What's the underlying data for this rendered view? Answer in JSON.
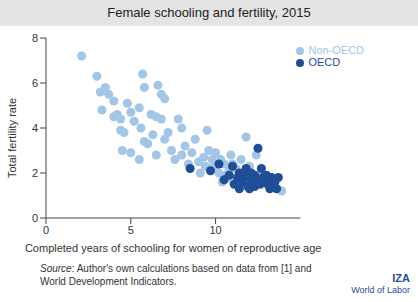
{
  "chart_data": {
    "type": "scatter",
    "title": "Female schooling and fertility, 2015",
    "x_label": "Completed years of schooling for women of reproductive age",
    "y_label": "Total fertility rate",
    "source": "Source: Author's own calculations based on data from [1] and World Development Indicators.",
    "logo": [
      "IZA",
      "World of Labor"
    ],
    "xlim": [
      0,
      15
    ],
    "xticks": [
      0,
      5,
      10
    ],
    "ylim": [
      0,
      8
    ],
    "yticks": [
      0,
      2,
      4,
      6,
      8
    ],
    "grid": false,
    "legend": "top-right",
    "marker": "circle",
    "series": [
      {
        "name": "Non-OECD",
        "color": "#a4c6e6",
        "x": [
          2.1,
          3,
          3.2,
          3.5,
          3.3,
          3.7,
          4,
          4,
          4.2,
          4.4,
          4.4,
          4.6,
          4.8,
          5,
          5.2,
          5.5,
          5.7,
          5.8,
          5.6,
          5.8,
          6,
          6.2,
          6.3,
          6.5,
          6.6,
          6.8,
          7,
          6.8,
          7,
          7.2,
          7.4,
          7.6,
          5.5,
          5,
          4.5,
          6.5,
          7.8,
          8,
          8,
          8.2,
          8.4,
          8.6,
          8.8,
          9,
          9.1,
          9.3,
          9.5,
          9.6,
          9.7,
          9.8,
          10,
          10,
          10.2,
          10.3,
          10.5,
          10.6,
          10.8,
          10.9,
          11,
          11,
          11.2,
          11.3,
          11.5,
          11.5,
          11.7,
          11.8,
          12,
          12,
          12.2,
          12.4,
          12.5,
          12.7,
          12.8,
          13,
          13.3,
          13.6,
          13.9,
          11.9,
          10.4,
          9.4
        ],
        "values": [
          7.2,
          6.3,
          5.6,
          5.8,
          4.8,
          5.5,
          5.2,
          4.5,
          4.6,
          4.4,
          3.9,
          3.8,
          5.1,
          4.7,
          4.3,
          4.9,
          6.4,
          5.8,
          4,
          3.4,
          3.3,
          4.6,
          3.7,
          4.5,
          5.9,
          5.5,
          5.3,
          4.4,
          3.5,
          3.8,
          3,
          2.6,
          2.6,
          2.9,
          3,
          2.8,
          4.4,
          4,
          2.8,
          3.2,
          2.4,
          2.9,
          3.5,
          2.5,
          2,
          2.7,
          3.9,
          3,
          2.2,
          2.6,
          2.9,
          2.3,
          2,
          2.6,
          2.4,
          1.9,
          2.1,
          2.8,
          1.7,
          2.4,
          2.2,
          1.6,
          2.6,
          1.8,
          2,
          3.6,
          1.5,
          2.3,
          1.9,
          2.8,
          1.6,
          2,
          1.5,
          1.7,
          1.4,
          1.3,
          1.2,
          1.7,
          1.6,
          2.3
        ]
      },
      {
        "name": "OECD",
        "color": "#1f4e96",
        "x": [
          8.5,
          9.7,
          10.2,
          10.5,
          10.8,
          11,
          11.1,
          11.3,
          11.4,
          11.6,
          11.7,
          11.8,
          11.9,
          12,
          12.1,
          12.2,
          12.3,
          12.3,
          12.4,
          12.5,
          12.6,
          12.7,
          12.8,
          12.9,
          13,
          13.1,
          13.2,
          13.3,
          13.5,
          13.6,
          13.7,
          13.2,
          12,
          11.4
        ],
        "values": [
          2.2,
          2.1,
          2.4,
          1.7,
          1.9,
          2.3,
          1.5,
          1.8,
          2,
          1.6,
          1.9,
          2.2,
          1.4,
          1.8,
          2,
          1.6,
          1.4,
          1.9,
          1.7,
          3.1,
          1.5,
          2.2,
          1.8,
          1.6,
          1.9,
          1.5,
          1.7,
          1.8,
          1.6,
          1.3,
          1.8,
          1.3,
          1.3,
          1.3
        ]
      }
    ]
  }
}
